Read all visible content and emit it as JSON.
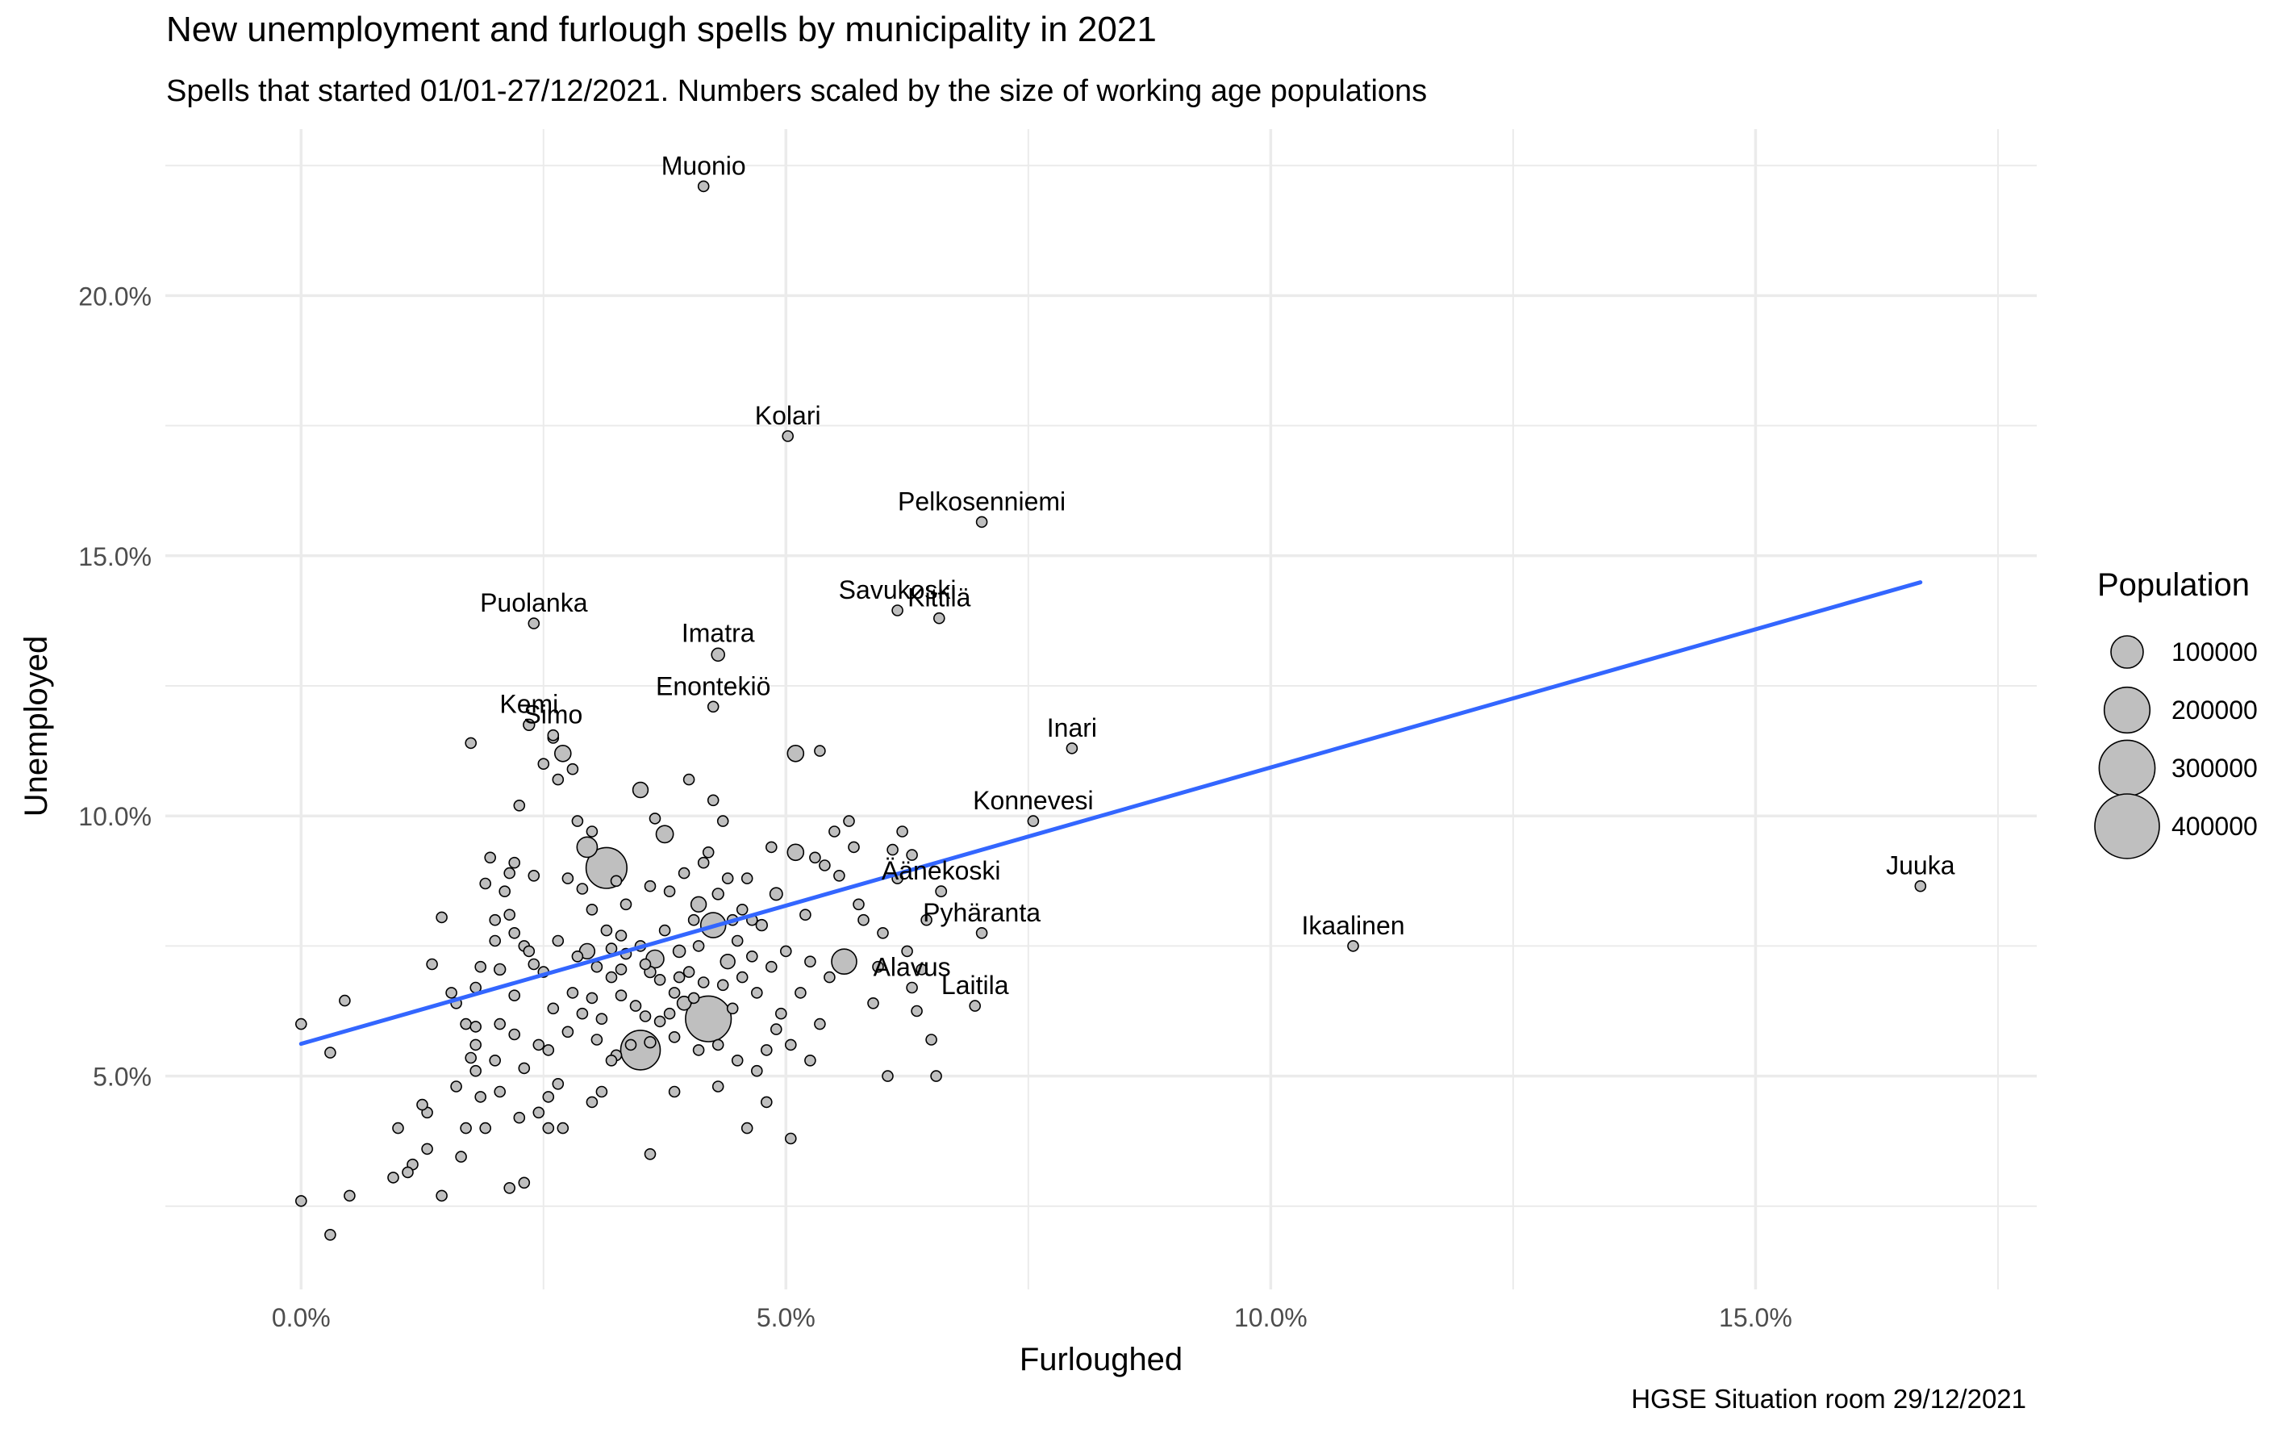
{
  "chart_data": {
    "type": "scatter",
    "title": "New unemployment and furlough spells by municipality in 2021",
    "subtitle": "Spells that started 01/01-27/12/2021. Numbers scaled by the size of working age populations",
    "caption": "HGSE Situation room 29/12/2021",
    "xlabel": "Furloughed",
    "ylabel": "Unemployed",
    "x_unit": "%",
    "y_unit": "%",
    "xlim": [
      -1.4,
      17.9
    ],
    "ylim": [
      0.9,
      23.2
    ],
    "x_ticks": [
      0,
      5,
      10,
      15
    ],
    "x_tick_labels": [
      "0.0%",
      "5.0%",
      "10.0%",
      "15.0%"
    ],
    "y_ticks": [
      5,
      10,
      15,
      20
    ],
    "y_tick_labels": [
      "5.0%",
      "10.0%",
      "15.0%",
      "20.0%"
    ],
    "grid": true,
    "colors": {
      "point_fill": "#bfbfbf",
      "point_stroke": "#000000",
      "trend_line": "#3366ff",
      "grid": "#ebebeb"
    },
    "trend_line": {
      "x": [
        0.0,
        16.7
      ],
      "y": [
        5.62,
        14.49
      ]
    },
    "legend": {
      "title": "Population",
      "position": "right",
      "entries": [
        {
          "label": "100000",
          "value": 100000
        },
        {
          "label": "200000",
          "value": 200000
        },
        {
          "label": "300000",
          "value": 300000
        },
        {
          "label": "400000",
          "value": 400000
        }
      ]
    },
    "labeled_points": [
      {
        "label": "Muonio",
        "x": 4.15,
        "y": 22.1,
        "pop": 1500
      },
      {
        "label": "Kolari",
        "x": 5.02,
        "y": 17.3,
        "pop": 2500
      },
      {
        "label": "Pelkosenniemi",
        "x": 7.02,
        "y": 15.65,
        "pop": 600
      },
      {
        "label": "Savukoski",
        "x": 6.15,
        "y": 13.95,
        "pop": 700
      },
      {
        "label": "Kittilä",
        "x": 6.58,
        "y": 13.8,
        "pop": 4500
      },
      {
        "label": "Puolanka",
        "x": 2.4,
        "y": 13.7,
        "pop": 1600
      },
      {
        "label": "Imatra",
        "x": 4.3,
        "y": 13.1,
        "pop": 16000
      },
      {
        "label": "Enontekiö",
        "x": 4.25,
        "y": 12.1,
        "pop": 1100
      },
      {
        "label": "Kemi",
        "x": 2.35,
        "y": 11.75,
        "pop": 12000
      },
      {
        "label": "Simo",
        "x": 2.6,
        "y": 11.55,
        "pop": 1800
      },
      {
        "label": "Inari",
        "x": 7.95,
        "y": 11.3,
        "pop": 4000
      },
      {
        "label": "Konnevesi",
        "x": 7.55,
        "y": 9.9,
        "pop": 1500
      },
      {
        "label": "Äänekoski",
        "x": 6.6,
        "y": 8.55,
        "pop": 11000
      },
      {
        "label": "Juuka",
        "x": 16.7,
        "y": 8.65,
        "pop": 2700
      },
      {
        "label": "Pyhäranta",
        "x": 7.02,
        "y": 7.75,
        "pop": 1300
      },
      {
        "label": "Ikaalinen",
        "x": 10.85,
        "y": 7.5,
        "pop": 4700
      },
      {
        "label": "Alavus",
        "x": 6.3,
        "y": 6.7,
        "pop": 6300
      },
      {
        "label": "Laitila",
        "x": 6.95,
        "y": 6.35,
        "pop": 4900
      }
    ],
    "points": [
      {
        "x": 0.0,
        "y": 6.0,
        "pop": 800
      },
      {
        "x": 0.0,
        "y": 2.6,
        "pop": 900
      },
      {
        "x": 0.3,
        "y": 1.95,
        "pop": 1000
      },
      {
        "x": 0.3,
        "y": 5.45,
        "pop": 1200
      },
      {
        "x": 0.45,
        "y": 6.45,
        "pop": 800
      },
      {
        "x": 0.5,
        "y": 2.7,
        "pop": 700
      },
      {
        "x": 0.95,
        "y": 3.05,
        "pop": 1200
      },
      {
        "x": 1.0,
        "y": 4.0,
        "pop": 1000
      },
      {
        "x": 1.1,
        "y": 3.15,
        "pop": 1500
      },
      {
        "x": 1.15,
        "y": 3.3,
        "pop": 2500
      },
      {
        "x": 1.25,
        "y": 4.45,
        "pop": 1400
      },
      {
        "x": 1.3,
        "y": 4.3,
        "pop": 3500
      },
      {
        "x": 1.3,
        "y": 3.6,
        "pop": 1500
      },
      {
        "x": 1.35,
        "y": 7.15,
        "pop": 1200
      },
      {
        "x": 1.45,
        "y": 8.05,
        "pop": 1800
      },
      {
        "x": 1.45,
        "y": 2.7,
        "pop": 3000
      },
      {
        "x": 1.55,
        "y": 6.6,
        "pop": 6000
      },
      {
        "x": 1.6,
        "y": 6.4,
        "pop": 2000
      },
      {
        "x": 1.6,
        "y": 4.8,
        "pop": 1600
      },
      {
        "x": 1.65,
        "y": 3.45,
        "pop": 5000
      },
      {
        "x": 1.7,
        "y": 4.0,
        "pop": 3500
      },
      {
        "x": 1.7,
        "y": 6.0,
        "pop": 2000
      },
      {
        "x": 1.75,
        "y": 11.4,
        "pop": 1800
      },
      {
        "x": 1.75,
        "y": 5.35,
        "pop": 2500
      },
      {
        "x": 1.8,
        "y": 5.1,
        "pop": 3000
      },
      {
        "x": 1.8,
        "y": 5.6,
        "pop": 3500
      },
      {
        "x": 1.8,
        "y": 5.95,
        "pop": 1500
      },
      {
        "x": 1.8,
        "y": 6.7,
        "pop": 5500
      },
      {
        "x": 1.85,
        "y": 7.1,
        "pop": 4000
      },
      {
        "x": 1.85,
        "y": 4.6,
        "pop": 2500
      },
      {
        "x": 1.9,
        "y": 4.0,
        "pop": 3500
      },
      {
        "x": 1.9,
        "y": 8.7,
        "pop": 5000
      },
      {
        "x": 1.95,
        "y": 9.2,
        "pop": 9000
      },
      {
        "x": 2.0,
        "y": 8.0,
        "pop": 4500
      },
      {
        "x": 2.0,
        "y": 7.6,
        "pop": 2000
      },
      {
        "x": 2.0,
        "y": 5.3,
        "pop": 3000
      },
      {
        "x": 2.05,
        "y": 4.7,
        "pop": 1500
      },
      {
        "x": 2.05,
        "y": 7.05,
        "pop": 12000
      },
      {
        "x": 2.05,
        "y": 6.0,
        "pop": 2500
      },
      {
        "x": 2.1,
        "y": 8.55,
        "pop": 3500
      },
      {
        "x": 2.15,
        "y": 8.1,
        "pop": 7000
      },
      {
        "x": 2.15,
        "y": 8.9,
        "pop": 4000
      },
      {
        "x": 2.15,
        "y": 2.85,
        "pop": 5000
      },
      {
        "x": 2.2,
        "y": 9.1,
        "pop": 6000
      },
      {
        "x": 2.2,
        "y": 5.8,
        "pop": 4500
      },
      {
        "x": 2.2,
        "y": 7.75,
        "pop": 3000
      },
      {
        "x": 2.2,
        "y": 6.55,
        "pop": 2500
      },
      {
        "x": 2.25,
        "y": 4.2,
        "pop": 1500
      },
      {
        "x": 2.25,
        "y": 10.2,
        "pop": 3000
      },
      {
        "x": 2.3,
        "y": 2.95,
        "pop": 4500
      },
      {
        "x": 2.3,
        "y": 7.5,
        "pop": 7000
      },
      {
        "x": 2.3,
        "y": 5.15,
        "pop": 6000
      },
      {
        "x": 2.35,
        "y": 7.4,
        "pop": 2500
      },
      {
        "x": 2.4,
        "y": 7.15,
        "pop": 5000
      },
      {
        "x": 2.4,
        "y": 8.85,
        "pop": 2000
      },
      {
        "x": 2.45,
        "y": 5.6,
        "pop": 3500
      },
      {
        "x": 2.45,
        "y": 4.3,
        "pop": 2000
      },
      {
        "x": 2.5,
        "y": 7.0,
        "pop": 9000
      },
      {
        "x": 2.5,
        "y": 11.0,
        "pop": 3500
      },
      {
        "x": 2.55,
        "y": 4.6,
        "pop": 2500
      },
      {
        "x": 2.55,
        "y": 4.0,
        "pop": 3500
      },
      {
        "x": 2.55,
        "y": 5.5,
        "pop": 4500
      },
      {
        "x": 2.6,
        "y": 11.5,
        "pop": 5000
      },
      {
        "x": 2.6,
        "y": 6.3,
        "pop": 3500
      },
      {
        "x": 2.65,
        "y": 7.6,
        "pop": 2500
      },
      {
        "x": 2.65,
        "y": 10.7,
        "pop": 2500
      },
      {
        "x": 2.65,
        "y": 4.85,
        "pop": 4000
      },
      {
        "x": 2.7,
        "y": 11.2,
        "pop": 25000
      },
      {
        "x": 2.7,
        "y": 4.0,
        "pop": 2000
      },
      {
        "x": 2.75,
        "y": 8.8,
        "pop": 2000
      },
      {
        "x": 2.75,
        "y": 5.85,
        "pop": 5000
      },
      {
        "x": 2.8,
        "y": 10.9,
        "pop": 4500
      },
      {
        "x": 2.8,
        "y": 6.6,
        "pop": 7000
      },
      {
        "x": 2.85,
        "y": 9.9,
        "pop": 4000
      },
      {
        "x": 2.85,
        "y": 7.3,
        "pop": 9000
      },
      {
        "x": 2.9,
        "y": 6.2,
        "pop": 3000
      },
      {
        "x": 2.9,
        "y": 8.6,
        "pop": 8000
      },
      {
        "x": 2.95,
        "y": 9.4,
        "pop": 40000
      },
      {
        "x": 2.95,
        "y": 7.4,
        "pop": 22000
      },
      {
        "x": 3.0,
        "y": 9.7,
        "pop": 3500
      },
      {
        "x": 3.0,
        "y": 8.2,
        "pop": 7000
      },
      {
        "x": 3.0,
        "y": 6.5,
        "pop": 4000
      },
      {
        "x": 3.0,
        "y": 4.5,
        "pop": 6000
      },
      {
        "x": 3.05,
        "y": 7.1,
        "pop": 5000
      },
      {
        "x": 3.05,
        "y": 5.7,
        "pop": 3500
      },
      {
        "x": 3.1,
        "y": 6.1,
        "pop": 2500
      },
      {
        "x": 3.1,
        "y": 4.7,
        "pop": 5000
      },
      {
        "x": 3.15,
        "y": 7.8,
        "pop": 3000
      },
      {
        "x": 3.15,
        "y": 9.0,
        "pop": 160000
      },
      {
        "x": 3.2,
        "y": 7.45,
        "pop": 4000
      },
      {
        "x": 3.2,
        "y": 6.9,
        "pop": 2500
      },
      {
        "x": 3.2,
        "y": 5.3,
        "pop": 3000
      },
      {
        "x": 3.25,
        "y": 8.75,
        "pop": 5500
      },
      {
        "x": 3.25,
        "y": 5.4,
        "pop": 4500
      },
      {
        "x": 3.3,
        "y": 7.7,
        "pop": 10000
      },
      {
        "x": 3.3,
        "y": 7.05,
        "pop": 6000
      },
      {
        "x": 3.3,
        "y": 6.55,
        "pop": 4000
      },
      {
        "x": 3.35,
        "y": 8.3,
        "pop": 2000
      },
      {
        "x": 3.35,
        "y": 7.35,
        "pop": 3000
      },
      {
        "x": 3.4,
        "y": 5.6,
        "pop": 3500
      },
      {
        "x": 3.45,
        "y": 6.35,
        "pop": 7000
      },
      {
        "x": 3.5,
        "y": 7.5,
        "pop": 3000
      },
      {
        "x": 3.5,
        "y": 10.5,
        "pop": 22000
      },
      {
        "x": 3.5,
        "y": 5.5,
        "pop": 150000
      },
      {
        "x": 3.55,
        "y": 7.15,
        "pop": 5000
      },
      {
        "x": 3.55,
        "y": 6.15,
        "pop": 8000
      },
      {
        "x": 3.6,
        "y": 8.65,
        "pop": 6500
      },
      {
        "x": 3.6,
        "y": 7.0,
        "pop": 12000
      },
      {
        "x": 3.6,
        "y": 3.5,
        "pop": 8000
      },
      {
        "x": 3.6,
        "y": 5.65,
        "pop": 12000
      },
      {
        "x": 3.65,
        "y": 9.95,
        "pop": 4000
      },
      {
        "x": 3.65,
        "y": 7.25,
        "pop": 30000
      },
      {
        "x": 3.7,
        "y": 6.85,
        "pop": 4000
      },
      {
        "x": 3.7,
        "y": 6.05,
        "pop": 8000
      },
      {
        "x": 3.75,
        "y": 9.65,
        "pop": 28000
      },
      {
        "x": 3.75,
        "y": 7.8,
        "pop": 5000
      },
      {
        "x": 3.8,
        "y": 8.55,
        "pop": 3000
      },
      {
        "x": 3.8,
        "y": 6.2,
        "pop": 6000
      },
      {
        "x": 3.85,
        "y": 6.6,
        "pop": 5000
      },
      {
        "x": 3.85,
        "y": 5.75,
        "pop": 4500
      },
      {
        "x": 3.85,
        "y": 4.7,
        "pop": 4000
      },
      {
        "x": 3.9,
        "y": 6.9,
        "pop": 8000
      },
      {
        "x": 3.9,
        "y": 7.4,
        "pop": 14000
      },
      {
        "x": 3.95,
        "y": 8.9,
        "pop": 5500
      },
      {
        "x": 3.95,
        "y": 6.4,
        "pop": 18000
      },
      {
        "x": 4.0,
        "y": 10.7,
        "pop": 3000
      },
      {
        "x": 4.0,
        "y": 7.0,
        "pop": 10000
      },
      {
        "x": 4.05,
        "y": 8.0,
        "pop": 6000
      },
      {
        "x": 4.05,
        "y": 6.5,
        "pop": 4000
      },
      {
        "x": 4.1,
        "y": 8.3,
        "pop": 22000
      },
      {
        "x": 4.1,
        "y": 7.5,
        "pop": 8000
      },
      {
        "x": 4.1,
        "y": 5.5,
        "pop": 7000
      },
      {
        "x": 4.15,
        "y": 9.1,
        "pop": 7000
      },
      {
        "x": 4.15,
        "y": 6.8,
        "pop": 6000
      },
      {
        "x": 4.2,
        "y": 9.3,
        "pop": 9000
      },
      {
        "x": 4.2,
        "y": 6.1,
        "pop": 200000
      },
      {
        "x": 4.25,
        "y": 10.3,
        "pop": 5000
      },
      {
        "x": 4.25,
        "y": 7.9,
        "pop": 60000
      },
      {
        "x": 4.3,
        "y": 8.5,
        "pop": 12000
      },
      {
        "x": 4.3,
        "y": 5.6,
        "pop": 9000
      },
      {
        "x": 4.3,
        "y": 4.8,
        "pop": 4000
      },
      {
        "x": 4.35,
        "y": 9.9,
        "pop": 3500
      },
      {
        "x": 4.35,
        "y": 6.75,
        "pop": 7000
      },
      {
        "x": 4.4,
        "y": 8.8,
        "pop": 5000
      },
      {
        "x": 4.4,
        "y": 7.2,
        "pop": 20000
      },
      {
        "x": 4.45,
        "y": 8.0,
        "pop": 7000
      },
      {
        "x": 4.45,
        "y": 6.3,
        "pop": 6000
      },
      {
        "x": 4.5,
        "y": 7.6,
        "pop": 5500
      },
      {
        "x": 4.5,
        "y": 5.3,
        "pop": 4500
      },
      {
        "x": 4.55,
        "y": 8.2,
        "pop": 6000
      },
      {
        "x": 4.55,
        "y": 6.9,
        "pop": 4500
      },
      {
        "x": 4.6,
        "y": 4.0,
        "pop": 3000
      },
      {
        "x": 4.6,
        "y": 8.8,
        "pop": 3000
      },
      {
        "x": 4.65,
        "y": 8.0,
        "pop": 4000
      },
      {
        "x": 4.65,
        "y": 7.3,
        "pop": 3500
      },
      {
        "x": 4.7,
        "y": 6.6,
        "pop": 8000
      },
      {
        "x": 4.7,
        "y": 5.1,
        "pop": 4000
      },
      {
        "x": 4.75,
        "y": 7.9,
        "pop": 12000
      },
      {
        "x": 4.8,
        "y": 4.5,
        "pop": 2500
      },
      {
        "x": 4.8,
        "y": 5.5,
        "pop": 6500
      },
      {
        "x": 4.85,
        "y": 9.4,
        "pop": 4500
      },
      {
        "x": 4.85,
        "y": 7.1,
        "pop": 5000
      },
      {
        "x": 4.9,
        "y": 5.9,
        "pop": 3000
      },
      {
        "x": 4.9,
        "y": 8.5,
        "pop": 15000
      },
      {
        "x": 4.95,
        "y": 6.2,
        "pop": 5000
      },
      {
        "x": 5.0,
        "y": 7.4,
        "pop": 8000
      },
      {
        "x": 5.05,
        "y": 5.6,
        "pop": 4000
      },
      {
        "x": 5.05,
        "y": 3.8,
        "pop": 3000
      },
      {
        "x": 5.1,
        "y": 9.3,
        "pop": 25000
      },
      {
        "x": 5.1,
        "y": 11.2,
        "pop": 25000
      },
      {
        "x": 5.15,
        "y": 6.6,
        "pop": 6000
      },
      {
        "x": 5.2,
        "y": 8.1,
        "pop": 4000
      },
      {
        "x": 5.25,
        "y": 7.2,
        "pop": 2500
      },
      {
        "x": 5.25,
        "y": 5.3,
        "pop": 3500
      },
      {
        "x": 5.3,
        "y": 9.2,
        "pop": 5500
      },
      {
        "x": 5.35,
        "y": 11.25,
        "pop": 7000
      },
      {
        "x": 5.35,
        "y": 6.0,
        "pop": 6500
      },
      {
        "x": 5.4,
        "y": 9.05,
        "pop": 3000
      },
      {
        "x": 5.45,
        "y": 6.9,
        "pop": 4500
      },
      {
        "x": 5.5,
        "y": 9.7,
        "pop": 5000
      },
      {
        "x": 5.55,
        "y": 8.85,
        "pop": 3500
      },
      {
        "x": 5.6,
        "y": 7.2,
        "pop": 60000
      },
      {
        "x": 5.65,
        "y": 9.9,
        "pop": 6000
      },
      {
        "x": 5.7,
        "y": 9.4,
        "pop": 4000
      },
      {
        "x": 5.75,
        "y": 8.3,
        "pop": 4500
      },
      {
        "x": 5.8,
        "y": 8.0,
        "pop": 3500
      },
      {
        "x": 5.9,
        "y": 6.4,
        "pop": 6000
      },
      {
        "x": 5.95,
        "y": 7.1,
        "pop": 5500
      },
      {
        "x": 6.0,
        "y": 7.75,
        "pop": 3000
      },
      {
        "x": 6.05,
        "y": 5.0,
        "pop": 9000
      },
      {
        "x": 6.1,
        "y": 9.35,
        "pop": 4500
      },
      {
        "x": 6.15,
        "y": 8.8,
        "pop": 7000
      },
      {
        "x": 6.2,
        "y": 9.7,
        "pop": 6000
      },
      {
        "x": 6.25,
        "y": 7.4,
        "pop": 4000
      },
      {
        "x": 6.3,
        "y": 9.25,
        "pop": 5500
      },
      {
        "x": 6.35,
        "y": 6.25,
        "pop": 4500
      },
      {
        "x": 6.4,
        "y": 7.05,
        "pop": 8000
      },
      {
        "x": 6.45,
        "y": 8.0,
        "pop": 3500
      },
      {
        "x": 6.5,
        "y": 5.7,
        "pop": 5500
      },
      {
        "x": 6.55,
        "y": 5.0,
        "pop": 5000
      }
    ]
  }
}
